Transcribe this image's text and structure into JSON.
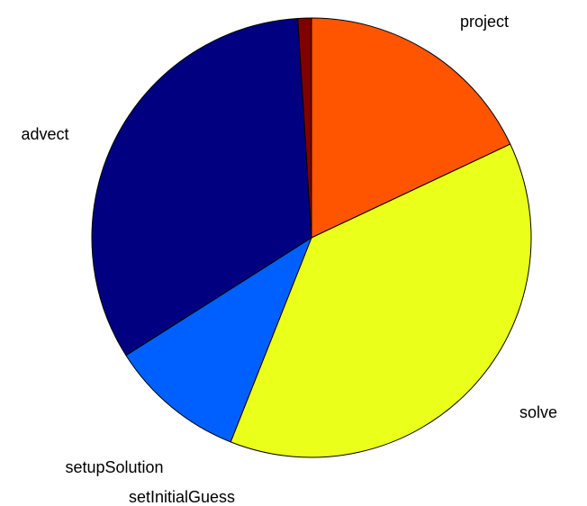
{
  "chart_data": {
    "type": "pie",
    "title": "",
    "start_angle_deg": 0,
    "direction": "clockwise",
    "slices": [
      {
        "label": "project",
        "value": 18,
        "color": "#FF5500"
      },
      {
        "label": "solve",
        "value": 38,
        "color": "#EAFF1A"
      },
      {
        "label": "setInitialGuess",
        "value": 0,
        "color": "#0055FF"
      },
      {
        "label": "setupSolution",
        "value": 10,
        "color": "#0060FF"
      },
      {
        "label": "advect",
        "value": 33,
        "color": "#000080"
      },
      {
        "label": "",
        "value": 1,
        "color": "#800000"
      }
    ],
    "legend": "none"
  }
}
